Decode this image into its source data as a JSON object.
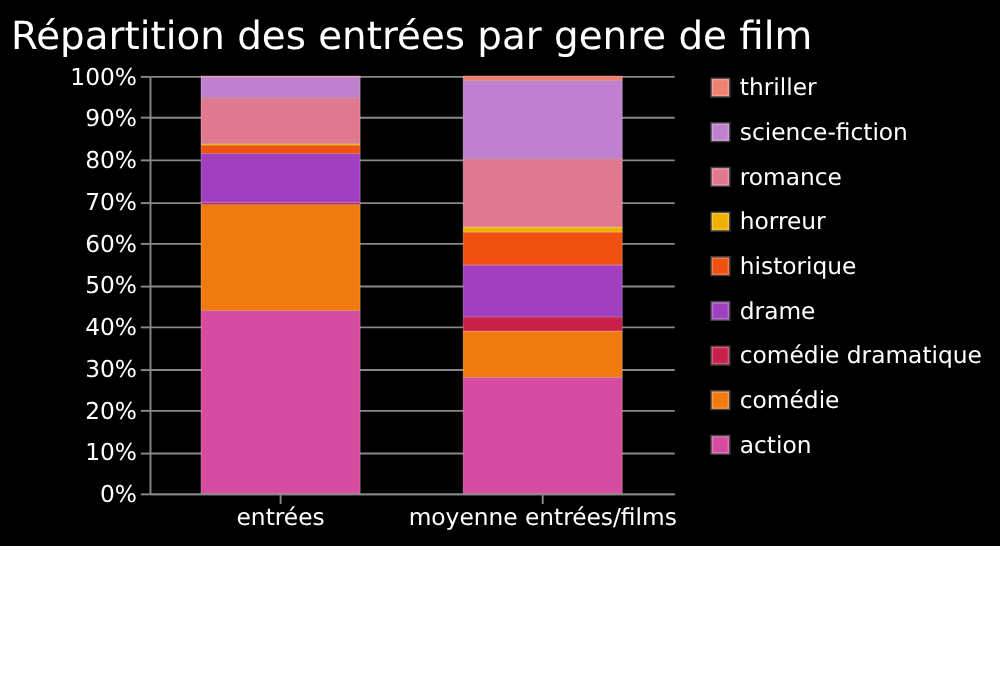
{
  "chart_data": {
    "type": "bar",
    "title": "Répartition des entrées par genre de film",
    "categories": [
      "entrées",
      "moyenne entrées/films"
    ],
    "stacked": true,
    "ylim": [
      0,
      100
    ],
    "yticks": [
      {
        "value": 0,
        "label": "0%"
      },
      {
        "value": 10,
        "label": "10%"
      },
      {
        "value": 20,
        "label": "20%"
      },
      {
        "value": 30,
        "label": "30%"
      },
      {
        "value": 40,
        "label": "40%"
      },
      {
        "value": 50,
        "label": "50%"
      },
      {
        "value": 60,
        "label": "60%"
      },
      {
        "value": 70,
        "label": "70%"
      },
      {
        "value": 80,
        "label": "80%"
      },
      {
        "value": 90,
        "label": "90%"
      },
      {
        "value": 100,
        "label": "100%"
      }
    ],
    "grid": "y",
    "legend": "right",
    "series": [
      {
        "name": "action",
        "color": "#d64ca0",
        "values": [
          43.8,
          27.8
        ]
      },
      {
        "name": "comédie",
        "color": "#f07a10",
        "values": [
          25.4,
          11.1
        ]
      },
      {
        "name": "comédie  dramatique",
        "color": "#c8204a",
        "values": [
          0.5,
          3.4
        ]
      },
      {
        "name": "drame",
        "color": "#a040c0",
        "values": [
          11.7,
          12.4
        ]
      },
      {
        "name": "historique",
        "color": "#f05010",
        "values": [
          2,
          7.9
        ]
      },
      {
        "name": "horreur",
        "color": "#f0b000",
        "values": [
          0.4,
          1.2
        ]
      },
      {
        "name": "romance",
        "color": "#e07890",
        "values": [
          11,
          16.4
        ]
      },
      {
        "name": "science-fiction",
        "color": "#c080d0",
        "values": [
          5,
          18.7
        ]
      },
      {
        "name": "thriller",
        "color": "#f08070",
        "values": [
          0.2,
          1.1
        ]
      }
    ]
  }
}
